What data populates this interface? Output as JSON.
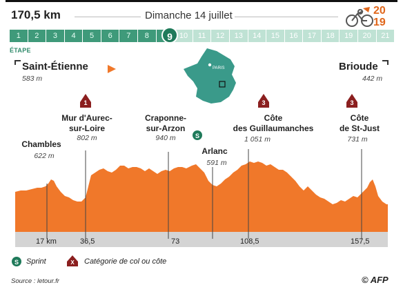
{
  "header": {
    "distance": "170,5 km",
    "date": "Dimanche 14 juillet",
    "etape_label": "ÉTAPE",
    "current_stage": "9",
    "logo_top": "20",
    "logo_bottom": "19"
  },
  "stages": [
    "1",
    "2",
    "3",
    "4",
    "5",
    "6",
    "7",
    "8",
    "9",
    "10",
    "11",
    "12",
    "13",
    "14",
    "15",
    "16",
    "17",
    "18",
    "19",
    "20",
    "21"
  ],
  "route": {
    "start_city": "Saint-Étienne",
    "start_alt": "583 m",
    "end_city": "Brioude",
    "end_alt": "442 m",
    "map_city": "PARIS"
  },
  "points": [
    {
      "name_l1": "Chambles",
      "name_l2": "",
      "alt": "622 m",
      "marker": ""
    },
    {
      "name_l1": "Mur d'Aurec-",
      "name_l2": "sur-Loire",
      "alt": "802 m",
      "marker": "1"
    },
    {
      "name_l1": "Craponne-",
      "name_l2": "sur-Arzon",
      "alt": "940 m",
      "marker": ""
    },
    {
      "name_l1": "Arlanc",
      "name_l2": "",
      "alt": "591 m",
      "marker": "S"
    },
    {
      "name_l1": "Côte",
      "name_l2": "des Guillaumanches",
      "alt": "1 051 m",
      "marker": "3"
    },
    {
      "name_l1": "Côte",
      "name_l2": "de St-Just",
      "alt": "731 m",
      "marker": "3"
    }
  ],
  "km_marks": [
    "17 km",
    "36,5",
    "73",
    "108,5",
    "157,5"
  ],
  "legend": {
    "sprint_icon": "S",
    "sprint_label": "Sprint",
    "climb_icon": "X",
    "climb_label": "Catégorie de col ou côte"
  },
  "footer": {
    "source": "Source : letour.fr",
    "credit": "© AFP"
  },
  "colors": {
    "profile": "#f0782a",
    "profile_light": "#f7a56b",
    "green": "#2f8a6a",
    "climb_marker": "#8b1f1f"
  }
}
